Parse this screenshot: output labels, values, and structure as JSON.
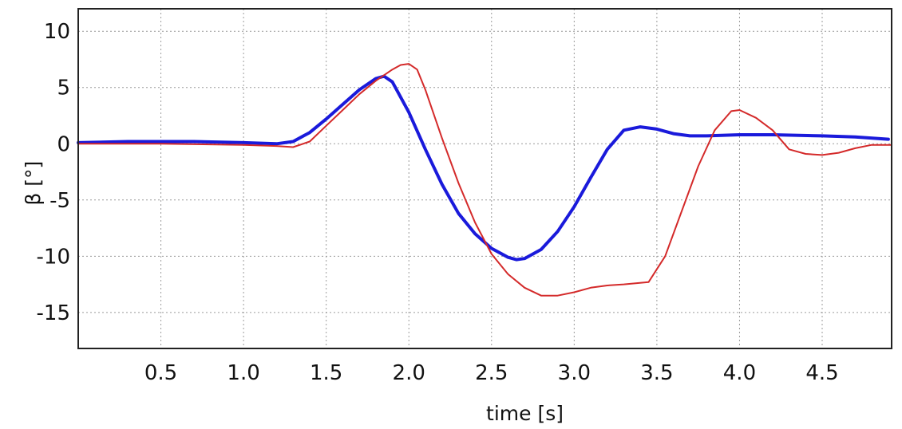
{
  "chart_data": {
    "type": "line",
    "title": "",
    "xlabel": "time [s]",
    "ylabel": "β [°]",
    "xlim": [
      0,
      4.92
    ],
    "ylim": [
      -18.2,
      12
    ],
    "grid": true,
    "legend": "none",
    "xticks": [
      0.5,
      1.0,
      1.5,
      2.0,
      2.5,
      3.0,
      3.5,
      4.0,
      4.5
    ],
    "xtick_labels": [
      "0.5",
      "1.0",
      "1.5",
      "2.0",
      "2.5",
      "3.0",
      "3.5",
      "4.0",
      "4.5"
    ],
    "yticks": [
      10,
      5,
      0,
      -5,
      -10,
      -15
    ],
    "ytick_labels": [
      "10",
      "5",
      "0",
      "-5",
      "-10",
      "-15"
    ],
    "series": [
      {
        "color": "#1a1adb",
        "x": [
          0,
          0.3,
          0.7,
          1.0,
          1.2,
          1.3,
          1.4,
          1.5,
          1.6,
          1.7,
          1.8,
          1.85,
          1.9,
          2.0,
          2.1,
          2.2,
          2.3,
          2.4,
          2.5,
          2.6,
          2.65,
          2.7,
          2.8,
          2.9,
          3.0,
          3.1,
          3.2,
          3.3,
          3.4,
          3.5,
          3.6,
          3.7,
          3.8,
          4.0,
          4.2,
          4.5,
          4.7,
          4.9
        ],
        "y": [
          0.1,
          0.2,
          0.2,
          0.1,
          0.0,
          0.2,
          1.0,
          2.2,
          3.5,
          4.8,
          5.8,
          6.0,
          5.5,
          2.8,
          -0.5,
          -3.6,
          -6.2,
          -8.0,
          -9.3,
          -10.1,
          -10.3,
          -10.2,
          -9.4,
          -7.8,
          -5.6,
          -3.0,
          -0.5,
          1.2,
          1.5,
          1.3,
          0.9,
          0.7,
          0.7,
          0.8,
          0.8,
          0.7,
          0.6,
          0.4
        ]
      },
      {
        "color": "#d42a2a",
        "x": [
          0,
          0.5,
          1.0,
          1.2,
          1.3,
          1.4,
          1.5,
          1.6,
          1.7,
          1.8,
          1.9,
          1.95,
          2.0,
          2.05,
          2.1,
          2.2,
          2.3,
          2.4,
          2.5,
          2.6,
          2.7,
          2.8,
          2.9,
          3.0,
          3.1,
          3.2,
          3.3,
          3.45,
          3.55,
          3.65,
          3.75,
          3.85,
          3.95,
          4.0,
          4.1,
          4.2,
          4.3,
          4.4,
          4.5,
          4.6,
          4.7,
          4.8,
          4.92
        ],
        "y": [
          0.0,
          0.0,
          -0.1,
          -0.2,
          -0.3,
          0.2,
          1.6,
          3.0,
          4.4,
          5.6,
          6.6,
          7.0,
          7.1,
          6.6,
          4.8,
          0.5,
          -3.5,
          -7.0,
          -9.8,
          -11.6,
          -12.8,
          -13.5,
          -13.5,
          -13.2,
          -12.8,
          -12.6,
          -12.5,
          -12.3,
          -10.0,
          -6.0,
          -2.0,
          1.2,
          2.9,
          3.0,
          2.3,
          1.2,
          -0.5,
          -0.9,
          -1.0,
          -0.8,
          -0.4,
          -0.1,
          -0.1
        ]
      }
    ]
  }
}
